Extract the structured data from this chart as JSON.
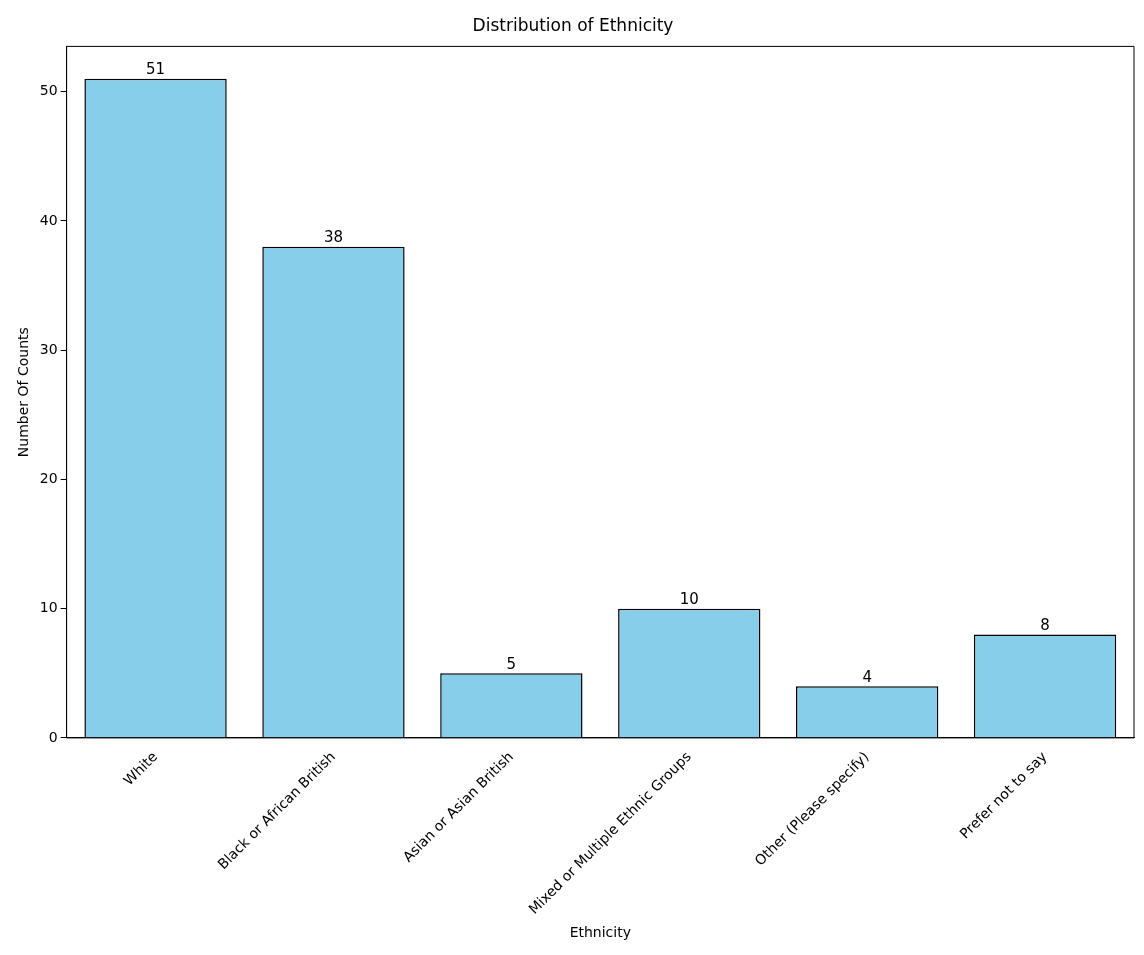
{
  "chart_data": {
    "type": "bar",
    "title": "Distribution of Ethnicity",
    "xlabel": "Ethnicity",
    "ylabel": "Number Of Counts",
    "categories": [
      "White",
      "Black or African British",
      "Asian or Asian British",
      "Mixed or Multiple Ethnic Groups",
      "Other (Please specify)",
      "Prefer not to say"
    ],
    "values": [
      51,
      38,
      5,
      10,
      4,
      8
    ],
    "color": "#87ceeb",
    "ylim": [
      0,
      53.5
    ],
    "yticks": [
      0,
      10,
      20,
      30,
      40,
      50
    ],
    "grid": false,
    "legend": false,
    "data_labels": true
  }
}
